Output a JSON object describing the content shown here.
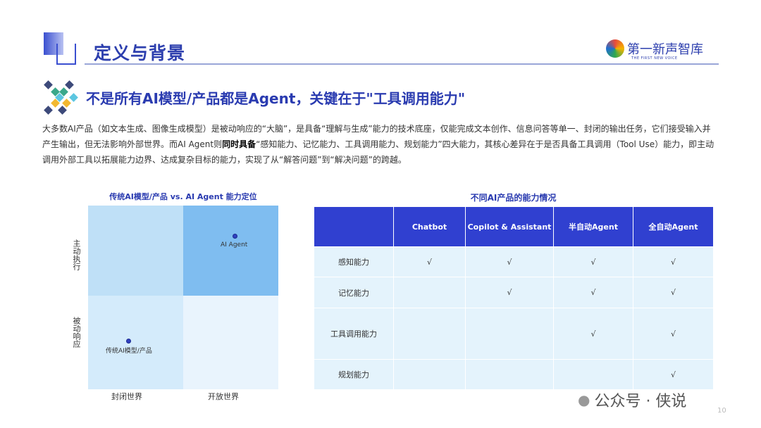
{
  "header": {
    "title": "定义与背景",
    "logo": {
      "name": "第一新声智库",
      "tagline": "THE FIRST NEW VOICE"
    }
  },
  "subtitle": "不是所有AI模型/产品都是Agent，关键在于\"工具调用能力\"",
  "paragraph": {
    "part1": "大多数AI产品（如文本生成、图像生成模型）是被动响应的“大脑”，是具备“理解与生成”能力的技术底座，仅能完成文本创作、信息问答等单一、封闭的输出任务，它们接受输入并产生输出，但无法影响外部世界。而AI Agent则",
    "bold": "同时具备",
    "part2": "“感知能力、记忆能力、工具调用能力、规划能力”四大能力，其核心差异在于是否具备工具调用（Tool Use）能力，即主动调用外部工具以拓展能力边界、达成复杂目标的能力，实现了从“解答问题”到“解决问题”的跨越。"
  },
  "quadrant": {
    "title": "传统AI模型/产品 vs. AI Agent 能力定位",
    "y_labels": [
      "主动执行",
      "被动响应"
    ],
    "x_labels": [
      "封闭世界",
      "开放世界"
    ],
    "points": [
      {
        "label": "AI Agent",
        "quadrant": "top-right"
      },
      {
        "label": "传统AI模型/产品",
        "quadrant": "bottom-left"
      }
    ],
    "colors": {
      "top_left": "#bfe0f7",
      "top_right": "#7fbdf0",
      "bottom_left": "#d4ebfb",
      "bottom_right": "#e9f4fd"
    }
  },
  "table": {
    "title": "不同AI产品的能力情况",
    "columns": [
      "",
      "Chatbot",
      "Copilot & Assistant",
      "半自动Agent",
      "全自动Agent"
    ],
    "rows": [
      [
        "感知能力",
        "√",
        "√",
        "√",
        "√"
      ],
      [
        "记忆能力",
        "",
        "√",
        "√",
        "√"
      ],
      [
        "工具调用能力",
        "",
        "",
        "√",
        "√"
      ],
      [
        "规划能力",
        "",
        "",
        "",
        "√"
      ]
    ],
    "header_color": "#3040d0"
  },
  "watermark": "公众号 · 侠说",
  "page_number": "10"
}
